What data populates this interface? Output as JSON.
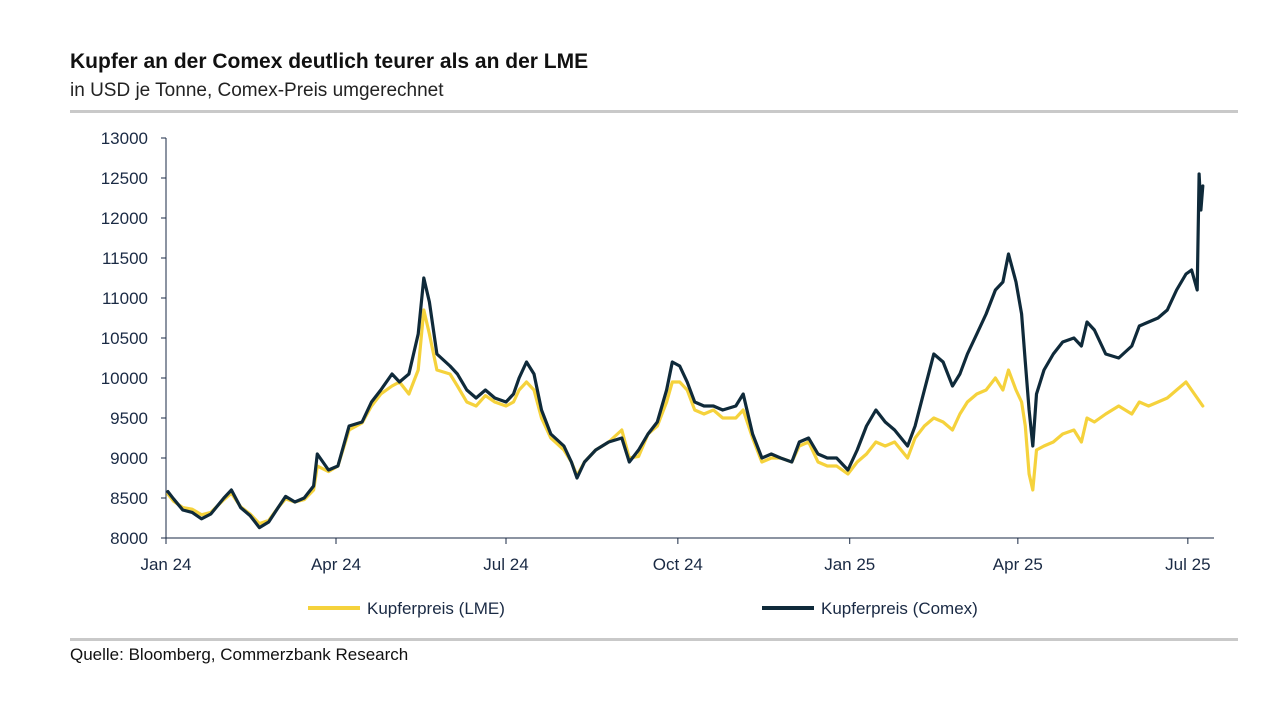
{
  "header": {
    "title": "Kupfer an der Comex deutlich teurer als an der LME",
    "subtitle": "in USD je Tonne, Comex-Preis umgerechnet"
  },
  "footer": {
    "source": "Quelle: Bloomberg, Commerzbank Research"
  },
  "colors": {
    "lme": "#f5d23c",
    "comex": "#0f2a3a",
    "axis": "#1a2a44",
    "rule": "#c9c9c9"
  },
  "chart_data": {
    "type": "line",
    "title": "Kupfer an der Comex deutlich teurer als an der LME",
    "subtitle": "in USD je Tonne, Comex-Preis umgerechnet",
    "xlabel": "",
    "ylabel": "",
    "xlim": [
      "2024-01-01",
      "2025-07-15"
    ],
    "ylim": [
      8000,
      13000
    ],
    "yticks": [
      8000,
      8500,
      9000,
      9500,
      10000,
      10500,
      11000,
      11500,
      12000,
      12500,
      13000
    ],
    "xticks": [
      {
        "date": "2024-01-01",
        "label": "Jan 24"
      },
      {
        "date": "2024-04-01",
        "label": "Apr 24"
      },
      {
        "date": "2024-07-01",
        "label": "Jul 24"
      },
      {
        "date": "2024-10-01",
        "label": "Oct 24"
      },
      {
        "date": "2025-01-01",
        "label": "Jan 25"
      },
      {
        "date": "2025-04-01",
        "label": "Apr 25"
      },
      {
        "date": "2025-07-01",
        "label": "Jul 25"
      }
    ],
    "legend_position": "bottom",
    "grid": false,
    "series": [
      {
        "name": "Kupferpreis (LME)",
        "color": "#f5d23c",
        "points": [
          [
            "2024-01-02",
            8550
          ],
          [
            "2024-01-05",
            8460
          ],
          [
            "2024-01-10",
            8380
          ],
          [
            "2024-01-15",
            8360
          ],
          [
            "2024-01-20",
            8290
          ],
          [
            "2024-01-25",
            8320
          ],
          [
            "2024-02-01",
            8480
          ],
          [
            "2024-02-05",
            8560
          ],
          [
            "2024-02-10",
            8390
          ],
          [
            "2024-02-15",
            8300
          ],
          [
            "2024-02-20",
            8180
          ],
          [
            "2024-02-25",
            8220
          ],
          [
            "2024-03-01",
            8380
          ],
          [
            "2024-03-05",
            8490
          ],
          [
            "2024-03-10",
            8450
          ],
          [
            "2024-03-15",
            8480
          ],
          [
            "2024-03-20",
            8600
          ],
          [
            "2024-03-22",
            8900
          ],
          [
            "2024-03-28",
            8830
          ],
          [
            "2024-04-02",
            8900
          ],
          [
            "2024-04-08",
            9350
          ],
          [
            "2024-04-15",
            9440
          ],
          [
            "2024-04-20",
            9650
          ],
          [
            "2024-04-25",
            9800
          ],
          [
            "2024-05-01",
            9900
          ],
          [
            "2024-05-05",
            9950
          ],
          [
            "2024-05-10",
            9800
          ],
          [
            "2024-05-15",
            10100
          ],
          [
            "2024-05-18",
            10850
          ],
          [
            "2024-05-21",
            10550
          ],
          [
            "2024-05-25",
            10100
          ],
          [
            "2024-06-01",
            10050
          ],
          [
            "2024-06-05",
            9900
          ],
          [
            "2024-06-10",
            9700
          ],
          [
            "2024-06-15",
            9650
          ],
          [
            "2024-06-20",
            9780
          ],
          [
            "2024-06-25",
            9700
          ],
          [
            "2024-07-01",
            9650
          ],
          [
            "2024-07-05",
            9700
          ],
          [
            "2024-07-08",
            9850
          ],
          [
            "2024-07-12",
            9950
          ],
          [
            "2024-07-16",
            9850
          ],
          [
            "2024-07-20",
            9500
          ],
          [
            "2024-07-25",
            9250
          ],
          [
            "2024-08-01",
            9100
          ],
          [
            "2024-08-05",
            8950
          ],
          [
            "2024-08-08",
            8780
          ],
          [
            "2024-08-12",
            8950
          ],
          [
            "2024-08-18",
            9100
          ],
          [
            "2024-08-25",
            9200
          ],
          [
            "2024-09-01",
            9350
          ],
          [
            "2024-09-05",
            9000
          ],
          [
            "2024-09-10",
            9020
          ],
          [
            "2024-09-15",
            9300
          ],
          [
            "2024-09-20",
            9400
          ],
          [
            "2024-09-25",
            9700
          ],
          [
            "2024-09-28",
            9950
          ],
          [
            "2024-10-02",
            9950
          ],
          [
            "2024-10-06",
            9850
          ],
          [
            "2024-10-10",
            9600
          ],
          [
            "2024-10-15",
            9550
          ],
          [
            "2024-10-20",
            9600
          ],
          [
            "2024-10-25",
            9500
          ],
          [
            "2024-11-01",
            9500
          ],
          [
            "2024-11-05",
            9600
          ],
          [
            "2024-11-10",
            9250
          ],
          [
            "2024-11-15",
            8950
          ],
          [
            "2024-11-20",
            9000
          ],
          [
            "2024-11-25",
            9000
          ],
          [
            "2024-12-01",
            8950
          ],
          [
            "2024-12-05",
            9150
          ],
          [
            "2024-12-10",
            9200
          ],
          [
            "2024-12-15",
            8950
          ],
          [
            "2024-12-20",
            8900
          ],
          [
            "2024-12-25",
            8900
          ],
          [
            "2024-12-31",
            8800
          ],
          [
            "2025-01-05",
            8950
          ],
          [
            "2025-01-10",
            9050
          ],
          [
            "2025-01-15",
            9200
          ],
          [
            "2025-01-20",
            9150
          ],
          [
            "2025-01-25",
            9200
          ],
          [
            "2025-02-01",
            9000
          ],
          [
            "2025-02-05",
            9250
          ],
          [
            "2025-02-10",
            9400
          ],
          [
            "2025-02-15",
            9500
          ],
          [
            "2025-02-20",
            9450
          ],
          [
            "2025-02-25",
            9350
          ],
          [
            "2025-03-01",
            9550
          ],
          [
            "2025-03-05",
            9700
          ],
          [
            "2025-03-10",
            9800
          ],
          [
            "2025-03-15",
            9850
          ],
          [
            "2025-03-20",
            10000
          ],
          [
            "2025-03-24",
            9850
          ],
          [
            "2025-03-27",
            10100
          ],
          [
            "2025-03-31",
            9850
          ],
          [
            "2025-04-03",
            9700
          ],
          [
            "2025-04-05",
            9400
          ],
          [
            "2025-04-07",
            8800
          ],
          [
            "2025-04-09",
            8600
          ],
          [
            "2025-04-11",
            9100
          ],
          [
            "2025-04-15",
            9150
          ],
          [
            "2025-04-20",
            9200
          ],
          [
            "2025-04-25",
            9300
          ],
          [
            "2025-05-01",
            9350
          ],
          [
            "2025-05-05",
            9200
          ],
          [
            "2025-05-08",
            9500
          ],
          [
            "2025-05-12",
            9450
          ],
          [
            "2025-05-18",
            9550
          ],
          [
            "2025-05-25",
            9650
          ],
          [
            "2025-06-01",
            9550
          ],
          [
            "2025-06-05",
            9700
          ],
          [
            "2025-06-10",
            9650
          ],
          [
            "2025-06-15",
            9700
          ],
          [
            "2025-06-20",
            9750
          ],
          [
            "2025-06-25",
            9850
          ],
          [
            "2025-06-30",
            9950
          ],
          [
            "2025-07-03",
            9850
          ],
          [
            "2025-07-06",
            9750
          ],
          [
            "2025-07-09",
            9650
          ]
        ]
      },
      {
        "name": "Kupferpreis (Comex)",
        "color": "#0f2a3a",
        "points": [
          [
            "2024-01-02",
            8580
          ],
          [
            "2024-01-05",
            8490
          ],
          [
            "2024-01-10",
            8350
          ],
          [
            "2024-01-15",
            8320
          ],
          [
            "2024-01-20",
            8240
          ],
          [
            "2024-01-25",
            8300
          ],
          [
            "2024-02-01",
            8500
          ],
          [
            "2024-02-05",
            8600
          ],
          [
            "2024-02-10",
            8380
          ],
          [
            "2024-02-15",
            8280
          ],
          [
            "2024-02-20",
            8130
          ],
          [
            "2024-02-25",
            8200
          ],
          [
            "2024-03-01",
            8380
          ],
          [
            "2024-03-05",
            8520
          ],
          [
            "2024-03-10",
            8450
          ],
          [
            "2024-03-15",
            8500
          ],
          [
            "2024-03-20",
            8650
          ],
          [
            "2024-03-22",
            9050
          ],
          [
            "2024-03-28",
            8850
          ],
          [
            "2024-04-02",
            8900
          ],
          [
            "2024-04-08",
            9400
          ],
          [
            "2024-04-15",
            9450
          ],
          [
            "2024-04-20",
            9700
          ],
          [
            "2024-04-25",
            9850
          ],
          [
            "2024-05-01",
            10050
          ],
          [
            "2024-05-05",
            9950
          ],
          [
            "2024-05-10",
            10050
          ],
          [
            "2024-05-15",
            10550
          ],
          [
            "2024-05-18",
            11250
          ],
          [
            "2024-05-21",
            10950
          ],
          [
            "2024-05-25",
            10300
          ],
          [
            "2024-06-01",
            10150
          ],
          [
            "2024-06-05",
            10050
          ],
          [
            "2024-06-10",
            9850
          ],
          [
            "2024-06-15",
            9750
          ],
          [
            "2024-06-20",
            9850
          ],
          [
            "2024-06-25",
            9750
          ],
          [
            "2024-07-01",
            9700
          ],
          [
            "2024-07-05",
            9800
          ],
          [
            "2024-07-08",
            10000
          ],
          [
            "2024-07-12",
            10200
          ],
          [
            "2024-07-16",
            10050
          ],
          [
            "2024-07-20",
            9600
          ],
          [
            "2024-07-25",
            9300
          ],
          [
            "2024-08-01",
            9150
          ],
          [
            "2024-08-05",
            8950
          ],
          [
            "2024-08-08",
            8750
          ],
          [
            "2024-08-12",
            8950
          ],
          [
            "2024-08-18",
            9100
          ],
          [
            "2024-08-25",
            9200
          ],
          [
            "2024-09-01",
            9250
          ],
          [
            "2024-09-05",
            8950
          ],
          [
            "2024-09-10",
            9100
          ],
          [
            "2024-09-15",
            9300
          ],
          [
            "2024-09-20",
            9450
          ],
          [
            "2024-09-25",
            9850
          ],
          [
            "2024-09-28",
            10200
          ],
          [
            "2024-10-02",
            10150
          ],
          [
            "2024-10-06",
            9950
          ],
          [
            "2024-10-10",
            9700
          ],
          [
            "2024-10-15",
            9650
          ],
          [
            "2024-10-20",
            9650
          ],
          [
            "2024-10-25",
            9600
          ],
          [
            "2024-11-01",
            9650
          ],
          [
            "2024-11-05",
            9800
          ],
          [
            "2024-11-10",
            9300
          ],
          [
            "2024-11-15",
            9000
          ],
          [
            "2024-11-20",
            9050
          ],
          [
            "2024-11-25",
            9000
          ],
          [
            "2024-12-01",
            8950
          ],
          [
            "2024-12-05",
            9200
          ],
          [
            "2024-12-10",
            9250
          ],
          [
            "2024-12-15",
            9050
          ],
          [
            "2024-12-20",
            9000
          ],
          [
            "2024-12-25",
            9000
          ],
          [
            "2024-12-31",
            8850
          ],
          [
            "2025-01-05",
            9100
          ],
          [
            "2025-01-10",
            9400
          ],
          [
            "2025-01-15",
            9600
          ],
          [
            "2025-01-20",
            9450
          ],
          [
            "2025-01-25",
            9350
          ],
          [
            "2025-02-01",
            9150
          ],
          [
            "2025-02-05",
            9400
          ],
          [
            "2025-02-10",
            9850
          ],
          [
            "2025-02-15",
            10300
          ],
          [
            "2025-02-20",
            10200
          ],
          [
            "2025-02-25",
            9900
          ],
          [
            "2025-03-01",
            10050
          ],
          [
            "2025-03-05",
            10300
          ],
          [
            "2025-03-10",
            10550
          ],
          [
            "2025-03-15",
            10800
          ],
          [
            "2025-03-20",
            11100
          ],
          [
            "2025-03-24",
            11200
          ],
          [
            "2025-03-27",
            11550
          ],
          [
            "2025-03-31",
            11200
          ],
          [
            "2025-04-03",
            10800
          ],
          [
            "2025-04-05",
            10200
          ],
          [
            "2025-04-07",
            9600
          ],
          [
            "2025-04-09",
            9150
          ],
          [
            "2025-04-11",
            9800
          ],
          [
            "2025-04-15",
            10100
          ],
          [
            "2025-04-20",
            10300
          ],
          [
            "2025-04-25",
            10450
          ],
          [
            "2025-05-01",
            10500
          ],
          [
            "2025-05-05",
            10400
          ],
          [
            "2025-05-08",
            10700
          ],
          [
            "2025-05-12",
            10600
          ],
          [
            "2025-05-18",
            10300
          ],
          [
            "2025-05-25",
            10250
          ],
          [
            "2025-06-01",
            10400
          ],
          [
            "2025-06-05",
            10650
          ],
          [
            "2025-06-10",
            10700
          ],
          [
            "2025-06-15",
            10750
          ],
          [
            "2025-06-20",
            10850
          ],
          [
            "2025-06-25",
            11100
          ],
          [
            "2025-06-30",
            11300
          ],
          [
            "2025-07-03",
            11350
          ],
          [
            "2025-07-06",
            11100
          ],
          [
            "2025-07-07",
            12550
          ],
          [
            "2025-07-08",
            12100
          ],
          [
            "2025-07-09",
            12400
          ]
        ]
      }
    ]
  }
}
